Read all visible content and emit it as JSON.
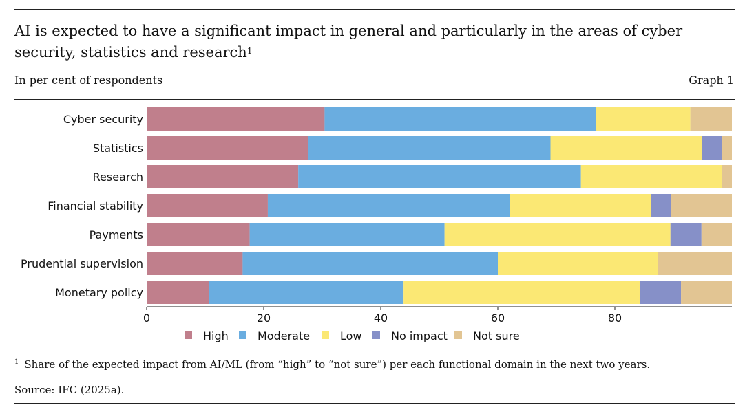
{
  "title": "AI is expected to have a significant impact in general and particularly in the areas of cyber security, statistics and research",
  "title_footnote_mark": "1",
  "subtitle": "In per cent of respondents",
  "graph_label": "Graph 1",
  "footnote": {
    "mark": "1",
    "text": "Share of the expected impact from AI/ML (from “high” to “not sure”) per each functional domain in the next two years."
  },
  "source": "Source: IFC (2025a).",
  "chart_data": {
    "type": "bar",
    "orientation": "horizontal",
    "stacked": true,
    "categories": [
      "Cyber security",
      "Statistics",
      "Research",
      "Financial stability",
      "Payments",
      "Prudential supervision",
      "Monetary policy"
    ],
    "series": [
      {
        "name": "High",
        "color": "#c07f8c",
        "values": [
          30.4,
          27.6,
          25.9,
          20.7,
          17.6,
          16.4,
          10.6
        ]
      },
      {
        "name": "Moderate",
        "color": "#6aade0",
        "values": [
          46.4,
          41.4,
          48.3,
          41.4,
          33.3,
          43.6,
          33.3
        ]
      },
      {
        "name": "Low",
        "color": "#fbe874",
        "values": [
          16.1,
          25.9,
          24.1,
          24.1,
          38.6,
          27.3,
          40.4
        ]
      },
      {
        "name": "No impact",
        "color": "#8690c8",
        "values": [
          0,
          3.4,
          0,
          3.4,
          5.3,
          0,
          7.0
        ]
      },
      {
        "name": "Not sure",
        "color": "#e2c593",
        "values": [
          7.1,
          1.7,
          1.7,
          10.4,
          5.2,
          12.7,
          8.7
        ]
      }
    ],
    "xlim": [
      0,
      100
    ],
    "xticks": [
      0,
      20,
      40,
      60,
      80
    ],
    "legend_position": "bottom",
    "grid": false
  }
}
